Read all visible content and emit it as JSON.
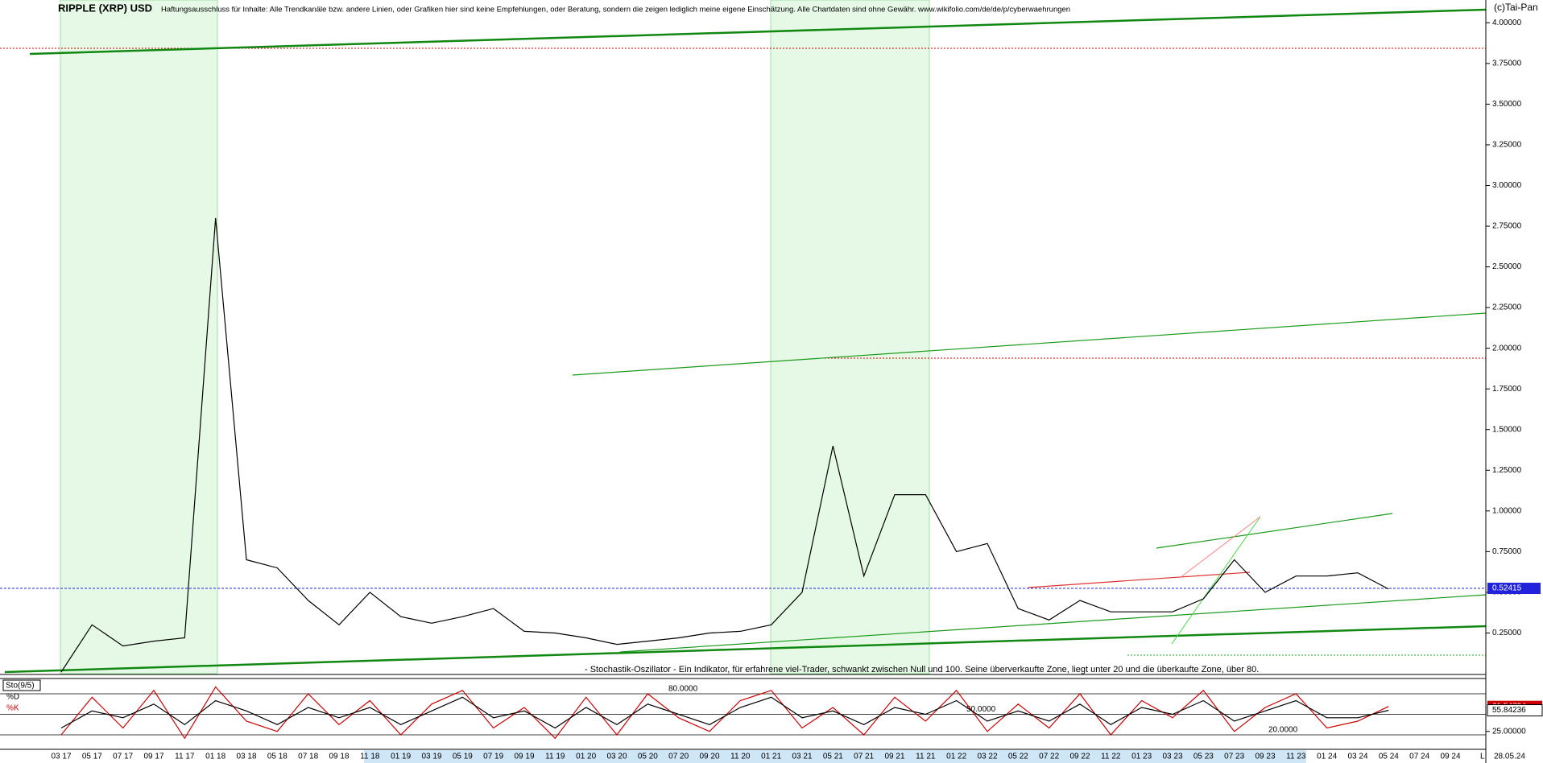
{
  "chart_data": [
    {
      "type": "line",
      "title": "RIPPLE (XRP) USD",
      "subtitle": "Haftungsausschluss für Inhalte: Alle Trendkanäle bzw. andere Linien, oder Grafiken hier sind keine Empfehlungen, oder Beratung, sondern die zeigen lediglich meine eigene Einschätzung. Alle Chartdaten sind ohne Gewähr. www.wikifolio.com/de/de/p/cyberwaehrungen",
      "source": "(c)Tai-Pan",
      "categories": [
        "03 17",
        "05 17",
        "07 17",
        "09 17",
        "11 17",
        "01 18",
        "03 18",
        "05 18",
        "07 18",
        "09 18",
        "11 18",
        "01 19",
        "03 19",
        "05 19",
        "07 19",
        "09 19",
        "11 19",
        "01 20",
        "03 20",
        "05 20",
        "07 20",
        "09 20",
        "11 20",
        "01 21",
        "03 21",
        "05 21",
        "07 21",
        "09 21",
        "11 21",
        "01 22",
        "03 22",
        "05 22",
        "07 22",
        "09 22",
        "11 22",
        "01 23",
        "03 23",
        "05 23",
        "07 23",
        "09 23",
        "11 23",
        "01 24",
        "03 24",
        "05 24",
        "07 24",
        "09 24"
      ],
      "x_end_labels": [
        "28.05.24",
        "L"
      ],
      "series": [
        {
          "name": "XRP",
          "color": "#000000",
          "values": [
            0.01,
            0.3,
            0.17,
            0.2,
            0.22,
            2.8,
            0.7,
            0.65,
            0.45,
            0.3,
            0.5,
            0.35,
            0.31,
            0.35,
            0.4,
            0.26,
            0.25,
            0.22,
            0.18,
            0.2,
            0.22,
            0.25,
            0.26,
            0.3,
            0.5,
            1.4,
            0.6,
            1.1,
            1.1,
            0.75,
            0.8,
            0.4,
            0.33,
            0.45,
            0.38,
            0.38,
            0.38,
            0.46,
            0.7,
            0.5,
            0.6,
            0.6,
            0.62,
            0.52,
            null,
            null
          ]
        }
      ],
      "last_price": 0.52415,
      "ylim": [
        0,
        4.14
      ],
      "yticks": [
        {
          "value": 0.25,
          "label": "0.25000"
        },
        {
          "value": 0.5,
          "label": "0.50000"
        },
        {
          "value": 0.75,
          "label": "0.75000"
        },
        {
          "value": 1,
          "label": "1.00000"
        },
        {
          "value": 1.25,
          "label": "1.25000"
        },
        {
          "value": 1.5,
          "label": "1.50000"
        },
        {
          "value": 1.75,
          "label": "1.75000"
        },
        {
          "value": 2,
          "label": "2.00000"
        },
        {
          "value": 2.25,
          "label": "2.25000"
        },
        {
          "value": 2.5,
          "label": "2.50000"
        },
        {
          "value": 2.75,
          "label": "2.75000"
        },
        {
          "value": 3,
          "label": "3.00000"
        },
        {
          "value": 3.25,
          "label": "3.25000"
        },
        {
          "value": 3.5,
          "label": "3.50000"
        },
        {
          "value": 3.75,
          "label": "3.75000"
        },
        {
          "value": 4,
          "label": "4.00000"
        }
      ],
      "grid": false
    },
    {
      "type": "line",
      "title": "Sto(9/5)",
      "annotation": "- Stochastik-Oszillator - Ein Indikator, für erfahrene viel-Trader, schwankt zwischen Null und 100. Seine überverkaufte Zone, liegt unter 20 und die überkaufte Zone, über 80.",
      "series": [
        {
          "name": "%K",
          "color": "#cc0000",
          "values": [
            20,
            75,
            30,
            85,
            15,
            90,
            40,
            25,
            80,
            35,
            70,
            20,
            65,
            85,
            30,
            60,
            15,
            75,
            20,
            80,
            45,
            25,
            70,
            85,
            30,
            60,
            20,
            75,
            40,
            85,
            25,
            65,
            30,
            80,
            20,
            70,
            45,
            85,
            25,
            60,
            80,
            30,
            40,
            61.54794,
            null,
            null
          ]
        },
        {
          "name": "%D",
          "color": "#000000",
          "values": [
            30,
            55,
            45,
            65,
            35,
            70,
            55,
            35,
            60,
            45,
            60,
            35,
            55,
            75,
            45,
            55,
            30,
            60,
            35,
            65,
            50,
            35,
            60,
            75,
            45,
            55,
            35,
            60,
            50,
            70,
            40,
            55,
            40,
            65,
            35,
            60,
            50,
            70,
            40,
            55,
            70,
            45,
            45,
            55.84236,
            null,
            null
          ]
        }
      ],
      "ylim": [
        0,
        100
      ],
      "yticks": [
        {
          "value": 25,
          "label": "25.00000"
        }
      ],
      "level_lines": [
        {
          "value": 80,
          "label": "80.0000"
        },
        {
          "value": 50,
          "label": "50.0000"
        },
        {
          "value": 20,
          "label": "20.0000"
        }
      ]
    }
  ]
}
